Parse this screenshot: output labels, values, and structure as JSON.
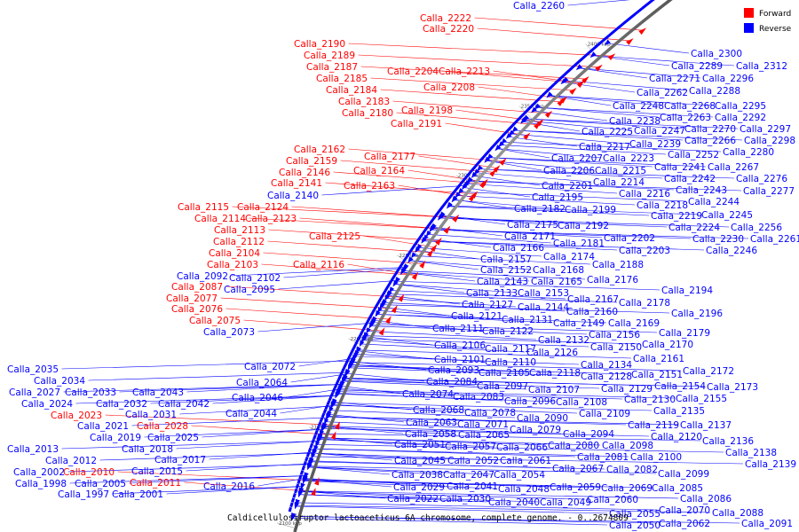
{
  "title": "Caldicellulosiruptor lactoaceticus 6A chromosome, complete genome. - 0..2674809",
  "legend": [
    {
      "label": "Forward",
      "color": "#ff0000"
    },
    {
      "label": "Reverse",
      "color": "#0000ff"
    }
  ],
  "ticks": [
    "2100 kbp",
    "2150 kbp",
    "2200 kbp",
    "2250 kbp",
    "2300 kbp",
    "2350 kbp",
    "2400 kbp"
  ],
  "forward_genes": [
    "Calla_2222",
    "Calla_2220",
    "Calla_2190",
    "Calla_2189",
    "Calla_2187",
    "Calla_2185",
    "Calla_2184",
    "Calla_2183",
    "Calla_2180",
    "Calla_2204",
    "Calla_2213",
    "Calla_2208",
    "Calla_2198",
    "Calla_2191",
    "Calla_2177",
    "Calla_2162",
    "Calla_2159",
    "Calla_2146",
    "Calla_2164",
    "Calla_2141",
    "Calla_2163",
    "Calla_2115",
    "Calla_2124",
    "Calla_2114",
    "Calla_2123",
    "Calla_2113",
    "Calla_2112",
    "Calla_2125",
    "Calla_2104",
    "Calla_2103",
    "Calla_2116",
    "Calla_2087",
    "Calla_2077",
    "Calla_2076",
    "Calla_2075",
    "Calla_2023",
    "Calla_2028",
    "Calla_2010",
    "Calla_2011"
  ],
  "reverse_genes": [
    "Calla_2260",
    "Calla_2300",
    "Calla_2289",
    "Calla_2312",
    "Calla_2271",
    "Calla_2296",
    "Calla_2262",
    "Calla_2288",
    "Calla_2248",
    "Calla_2268",
    "Calla_2295",
    "Calla_2238",
    "Calla_2263",
    "Calla_2292",
    "Calla_2225",
    "Calla_2247",
    "Calla_2270",
    "Calla_2297",
    "Calla_2217",
    "Calla_2239",
    "Calla_2266",
    "Calla_2298",
    "Calla_2207",
    "Calla_2223",
    "Calla_2252",
    "Calla_2280",
    "Calla_2206",
    "Calla_2215",
    "Calla_2241",
    "Calla_2267",
    "Calla_2214",
    "Calla_2242",
    "Calla_2276",
    "Calla_2201",
    "Calla_2216",
    "Calla_2243",
    "Calla_2277",
    "Calla_2195",
    "Calla_2218",
    "Calla_2244",
    "Calla_2182",
    "Calla_2199",
    "Calla_2219",
    "Calla_2245",
    "Calla_2192",
    "Calla_2224",
    "Calla_2256",
    "Calla_2175",
    "Calla_2230",
    "Calla_2261",
    "Calla_2171",
    "Calla_2202",
    "Calla_2246",
    "Calla_2166",
    "Calla_2181",
    "Calla_2203",
    "Calla_2157",
    "Calla_2174",
    "Calla_2188",
    "Calla_2152",
    "Calla_2168",
    "Calla_2143",
    "Calla_2165",
    "Calla_2176",
    "Calla_2194",
    "Calla_2133",
    "Calla_2153",
    "Calla_2167",
    "Calla_2178",
    "Calla_2127",
    "Calla_2144",
    "Calla_2160",
    "Calla_2196",
    "Calla_2121",
    "Calla_2131",
    "Calla_2149",
    "Calla_2169",
    "Calla_2111",
    "Calla_2122",
    "Calla_2132",
    "Calla_2156",
    "Calla_2179",
    "Calla_2106",
    "Calla_2117",
    "Calla_2126",
    "Calla_2150",
    "Calla_2170",
    "Calla_2101",
    "Calla_2110",
    "Calla_2134",
    "Calla_2161",
    "Calla_2093",
    "Calla_2105",
    "Calla_2118",
    "Calla_2128",
    "Calla_2151",
    "Calla_2172",
    "Calla_2084",
    "Calla_2097",
    "Calla_2129",
    "Calla_2154",
    "Calla_2173",
    "Calla_2074",
    "Calla_2083",
    "Calla_2107",
    "Calla_2130",
    "Calla_2155",
    "Calla_2096",
    "Calla_2108",
    "Calla_2135",
    "Calla_2068",
    "Calla_2078",
    "Calla_2090",
    "Calla_2109",
    "Calla_2063",
    "Calla_2071",
    "Calla_2079",
    "Calla_2119",
    "Calla_2137",
    "Calla_2058",
    "Calla_2065",
    "Calla_2094",
    "Calla_2120",
    "Calla_2136",
    "Calla_2051",
    "Calla_2057",
    "Calla_2066",
    "Calla_2080",
    "Calla_2098",
    "Calla_2138",
    "Calla_2045",
    "Calla_2052",
    "Calla_2061",
    "Calla_2081",
    "Calla_2100",
    "Calla_2139",
    "Calla_2038",
    "Calla_2047",
    "Calla_2054",
    "Calla_2067",
    "Calla_2082",
    "Calla_2099",
    "Calla_2029",
    "Calla_2041",
    "Calla_2059",
    "Calla_2069",
    "Calla_2085",
    "Calla_2022",
    "Calla_2030",
    "Calla_2048",
    "Calla_2060",
    "Calla_2086",
    "Calla_2040",
    "Calla_2049",
    "Calla_2070",
    "Calla_2088",
    "Calla_2055",
    "Calla_2062",
    "Calla_2091",
    "Calla_2050",
    "Calla_2092",
    "Calla_2102",
    "Calla_2095",
    "Calla_2073",
    "Calla_2072",
    "Calla_2064",
    "Calla_2046",
    "Calla_2044",
    "Calla_2140",
    "Calla_2035",
    "Calla_2034",
    "Calla_2027",
    "Calla_2033",
    "Calla_2043",
    "Calla_2024",
    "Calla_2032",
    "Calla_2042",
    "Calla_2031",
    "Calla_2021",
    "Calla_2019",
    "Calla_2025",
    "Calla_2018",
    "Calla_2013",
    "Calla_2017",
    "Calla_2012",
    "Calla_2002",
    "Calla_2015",
    "Calla_1998",
    "Calla_2005",
    "Calla_2016",
    "Calla_1997",
    "Calla_2001"
  ]
}
